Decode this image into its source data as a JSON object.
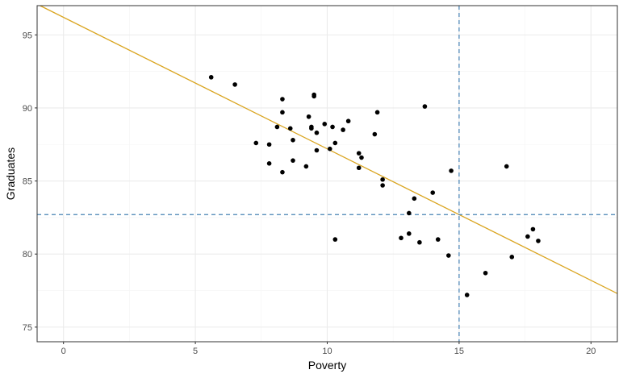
{
  "chart_data": {
    "type": "scatter",
    "xlabel": "Poverty",
    "ylabel": "Graduates",
    "xlim": [
      -1,
      21
    ],
    "ylim": [
      74,
      97
    ],
    "x_ticks": [
      0,
      5,
      10,
      15,
      20
    ],
    "y_ticks": [
      75,
      80,
      85,
      90,
      95
    ],
    "x_tick_labels": [
      "0",
      "5",
      "10",
      "15",
      "20"
    ],
    "y_tick_labels": [
      "75",
      "80",
      "85",
      "90",
      "95"
    ],
    "grid": true,
    "legend": "none",
    "colors": {
      "points": "#000000",
      "fit_line": "#DAA520",
      "reference_lines": "#4682B4",
      "panel_border": "#333333",
      "grid_major": "#EBEBEB",
      "grid_minor": "#F5F5F5"
    },
    "points": [
      {
        "x": 5.6,
        "y": 92.1
      },
      {
        "x": 6.5,
        "y": 91.6
      },
      {
        "x": 7.3,
        "y": 87.6
      },
      {
        "x": 7.8,
        "y": 87.5
      },
      {
        "x": 7.8,
        "y": 86.2
      },
      {
        "x": 8.1,
        "y": 88.7
      },
      {
        "x": 8.3,
        "y": 90.6
      },
      {
        "x": 8.3,
        "y": 89.7
      },
      {
        "x": 8.3,
        "y": 85.6
      },
      {
        "x": 8.6,
        "y": 88.6
      },
      {
        "x": 8.7,
        "y": 87.8
      },
      {
        "x": 8.7,
        "y": 86.4
      },
      {
        "x": 9.2,
        "y": 86.0
      },
      {
        "x": 9.3,
        "y": 89.4
      },
      {
        "x": 9.4,
        "y": 88.7
      },
      {
        "x": 9.4,
        "y": 88.6
      },
      {
        "x": 9.5,
        "y": 90.9
      },
      {
        "x": 9.5,
        "y": 90.8
      },
      {
        "x": 9.6,
        "y": 88.3
      },
      {
        "x": 9.6,
        "y": 87.1
      },
      {
        "x": 9.9,
        "y": 88.9
      },
      {
        "x": 10.1,
        "y": 87.2
      },
      {
        "x": 10.2,
        "y": 88.7
      },
      {
        "x": 10.3,
        "y": 87.6
      },
      {
        "x": 10.3,
        "y": 81.0
      },
      {
        "x": 10.6,
        "y": 88.5
      },
      {
        "x": 10.8,
        "y": 89.1
      },
      {
        "x": 11.2,
        "y": 86.9
      },
      {
        "x": 11.2,
        "y": 85.9
      },
      {
        "x": 11.3,
        "y": 86.6
      },
      {
        "x": 11.8,
        "y": 88.2
      },
      {
        "x": 11.9,
        "y": 89.7
      },
      {
        "x": 12.1,
        "y": 85.1
      },
      {
        "x": 12.1,
        "y": 84.7
      },
      {
        "x": 12.8,
        "y": 81.1
      },
      {
        "x": 13.1,
        "y": 82.8
      },
      {
        "x": 13.1,
        "y": 81.4
      },
      {
        "x": 13.3,
        "y": 83.8
      },
      {
        "x": 13.5,
        "y": 80.8
      },
      {
        "x": 13.7,
        "y": 90.1
      },
      {
        "x": 14.0,
        "y": 84.2
      },
      {
        "x": 14.2,
        "y": 81.0
      },
      {
        "x": 14.6,
        "y": 79.9
      },
      {
        "x": 14.7,
        "y": 85.7
      },
      {
        "x": 15.3,
        "y": 77.2
      },
      {
        "x": 16.0,
        "y": 78.7
      },
      {
        "x": 16.8,
        "y": 86.0
      },
      {
        "x": 17.0,
        "y": 79.8
      },
      {
        "x": 17.6,
        "y": 81.2
      },
      {
        "x": 17.8,
        "y": 81.7
      },
      {
        "x": 18.0,
        "y": 80.9
      }
    ],
    "fit_line": {
      "intercept": 96.2,
      "slope": -0.9
    },
    "reference_lines": {
      "vertical_x": 15,
      "horizontal_y": 82.7
    }
  }
}
